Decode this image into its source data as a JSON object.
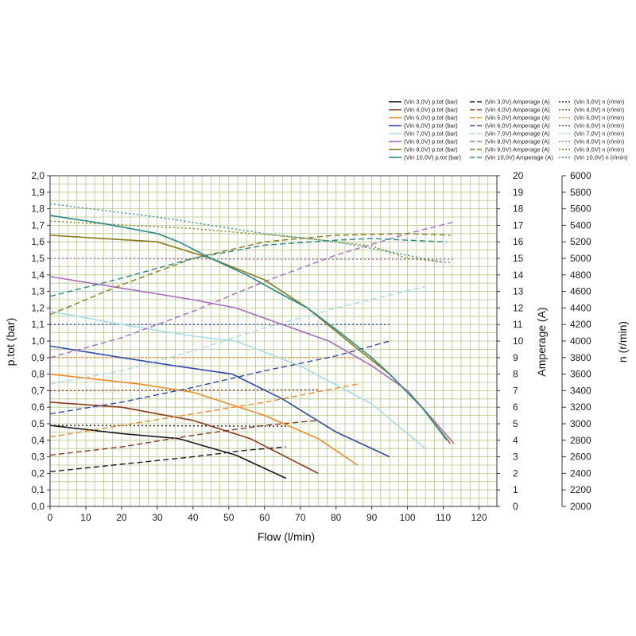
{
  "chart_data": {
    "type": "line",
    "xlabel": "Flow (l/min)",
    "ylabel_left": "p.tot (bar)",
    "ylabel_right1": "Amperage (A)",
    "ylabel_right2": "n (r/min)",
    "xlim": [
      0,
      125
    ],
    "ylim_left": [
      0,
      2.0
    ],
    "ylim_right1": [
      0,
      20
    ],
    "ylim_right2": [
      2000,
      6000
    ],
    "x_ticks": [
      "0",
      "10",
      "20",
      "30",
      "40",
      "50",
      "60",
      "70",
      "80",
      "90",
      "100",
      "110",
      "120"
    ],
    "y_left_ticks": [
      "0,0",
      "0,1",
      "0,2",
      "0,3",
      "0,4",
      "0,5",
      "0,6",
      "0,7",
      "0,8",
      "0,9",
      "1,0",
      "1,1",
      "1,2",
      "1,3",
      "1,4",
      "1,5",
      "1,6",
      "1,7",
      "1,8",
      "1,9",
      "2,0"
    ],
    "y_right1_ticks": [
      "0",
      "1",
      "2",
      "3",
      "4",
      "5",
      "6",
      "7",
      "8",
      "9",
      "10",
      "11",
      "12",
      "13",
      "14",
      "15",
      "16",
      "17",
      "18",
      "19",
      "20"
    ],
    "y_right2_ticks": [
      "2000",
      "2200",
      "2400",
      "2600",
      "2800",
      "3000",
      "3200",
      "3400",
      "3600",
      "3800",
      "4000",
      "4200",
      "4400",
      "4600",
      "4800",
      "5000",
      "5200",
      "5400",
      "5600",
      "5800",
      "6000"
    ],
    "grid": true,
    "legend_position": "top-right",
    "colors": {
      "grid": "#b5c48e",
      "vin3": "#1a1a1a",
      "vin4": "#8b3a1a",
      "vin5": "#f08a24",
      "vin6": "#2e4aa8",
      "vin7": "#a8dbe8",
      "vin8": "#a86bbd",
      "vin9": "#8a7a1a",
      "vin10": "#2a8a84"
    },
    "series": [
      {
        "key": "vin3",
        "voltage": "3,0V",
        "legend_ptot": "(Vin 3,0V) p.tot (bar)",
        "legend_amp": "(Vin 3,0V) Amperage (A)",
        "legend_n": "(Vin 3,0V) n (r/min)",
        "ptot": [
          [
            0,
            0.49
          ],
          [
            20,
            0.44
          ],
          [
            36,
            0.41
          ],
          [
            52,
            0.31
          ],
          [
            66,
            0.17
          ]
        ],
        "amp": [
          [
            0,
            2.1
          ],
          [
            20,
            2.55
          ],
          [
            40,
            3.0
          ],
          [
            55,
            3.4
          ],
          [
            66,
            3.6
          ]
        ],
        "n": [
          [
            0,
            2980
          ],
          [
            66,
            2970
          ]
        ]
      },
      {
        "key": "vin4",
        "voltage": "4,0V",
        "legend_ptot": "(Vin 4,0V) p.tot (bar)",
        "legend_amp": "(Vin 4,0V) Amperage (A)",
        "legend_n": "(Vin 4,0V) n (r/min)",
        "ptot": [
          [
            0,
            0.63
          ],
          [
            20,
            0.6
          ],
          [
            40,
            0.52
          ],
          [
            56,
            0.41
          ],
          [
            75,
            0.2
          ]
        ],
        "amp": [
          [
            0,
            3.1
          ],
          [
            20,
            3.6
          ],
          [
            40,
            4.3
          ],
          [
            60,
            4.9
          ],
          [
            75,
            5.2
          ]
        ],
        "n": [
          [
            0,
            3400
          ],
          [
            75,
            3410
          ]
        ]
      },
      {
        "key": "vin5",
        "voltage": "5,0V",
        "legend_ptot": "(Vin 5,0V) p.tot (bar)",
        "legend_amp": "(Vin 5,0V) Amperage (A)",
        "legend_n": "(Vin 5,0V) n (r/min)",
        "ptot": [
          [
            0,
            0.8
          ],
          [
            25,
            0.74
          ],
          [
            40,
            0.69
          ],
          [
            60,
            0.55
          ],
          [
            75,
            0.41
          ],
          [
            86,
            0.25
          ]
        ],
        "amp": [
          [
            0,
            4.2
          ],
          [
            20,
            4.9
          ],
          [
            40,
            5.6
          ],
          [
            60,
            6.3
          ],
          [
            86,
            7.4
          ]
        ],
        "n": [
          [
            0,
            3800
          ],
          [
            86,
            3800
          ]
        ]
      },
      {
        "key": "vin6",
        "voltage": "6,0V",
        "legend_ptot": "(Vin 6,0V) p.tot (bar)",
        "legend_amp": "(Vin 6,0V) Amperage (A)",
        "legend_n": "(Vin 6,0V) n (r/min)",
        "ptot": [
          [
            0,
            0.97
          ],
          [
            20,
            0.9
          ],
          [
            35,
            0.85
          ],
          [
            51,
            0.8
          ],
          [
            65,
            0.65
          ],
          [
            80,
            0.45
          ],
          [
            95,
            0.3
          ]
        ],
        "amp": [
          [
            0,
            5.6
          ],
          [
            20,
            6.3
          ],
          [
            40,
            7.2
          ],
          [
            60,
            8.2
          ],
          [
            80,
            9.1
          ],
          [
            95,
            10.0
          ]
        ],
        "n": [
          [
            0,
            4200
          ],
          [
            95,
            4200
          ]
        ]
      },
      {
        "key": "vin7",
        "voltage": "7,0V",
        "legend_ptot": "(Vin 7,0V) p.tot (bar)",
        "legend_amp": "(Vin 7,0V) Amperage (A)",
        "legend_n": "(Vin 7,0V) n (r/min)",
        "ptot": [
          [
            0,
            1.18
          ],
          [
            20,
            1.1
          ],
          [
            40,
            1.03
          ],
          [
            52,
            1.0
          ],
          [
            70,
            0.85
          ],
          [
            90,
            0.62
          ],
          [
            105,
            0.35
          ]
        ],
        "amp": [
          [
            0,
            7.4
          ],
          [
            20,
            8.2
          ],
          [
            40,
            9.4
          ],
          [
            60,
            10.8
          ],
          [
            80,
            12.0
          ],
          [
            105,
            13.3
          ]
        ],
        "n": [
          [
            0,
            4600
          ],
          [
            105,
            4600
          ]
        ]
      },
      {
        "key": "vin8",
        "voltage": "8,0V",
        "legend_ptot": "(Vin 8,0V) p.tot (bar)",
        "legend_amp": "(Vin 8,0V) Amperage (A)",
        "legend_n": "(Vin 8,0V) n (r/min)",
        "ptot": [
          [
            0,
            1.39
          ],
          [
            20,
            1.32
          ],
          [
            40,
            1.25
          ],
          [
            52,
            1.2
          ],
          [
            65,
            1.1
          ],
          [
            78,
            1.0
          ],
          [
            90,
            0.85
          ],
          [
            100,
            0.7
          ],
          [
            113,
            0.38
          ]
        ],
        "amp": [
          [
            0,
            9.0
          ],
          [
            20,
            10.2
          ],
          [
            40,
            11.8
          ],
          [
            60,
            13.6
          ],
          [
            80,
            15.2
          ],
          [
            100,
            16.5
          ],
          [
            113,
            17.2
          ]
        ],
        "n": [
          [
            0,
            5000
          ],
          [
            60,
            4990
          ],
          [
            113,
            4990
          ]
        ]
      },
      {
        "key": "vin9",
        "voltage": "9,0V",
        "legend_ptot": "(Vin 9,0V) p.tot (bar)",
        "legend_amp": "(Vin 9,0V) Amperage (A)",
        "legend_n": "(Vin 9,0V) n (r/min)",
        "ptot": [
          [
            0,
            1.64
          ],
          [
            15,
            1.62
          ],
          [
            30,
            1.6
          ],
          [
            45,
            1.5
          ],
          [
            60,
            1.37
          ],
          [
            72,
            1.2
          ],
          [
            85,
            0.97
          ],
          [
            95,
            0.8
          ],
          [
            104,
            0.6
          ],
          [
            112,
            0.38
          ]
        ],
        "amp": [
          [
            0,
            11.6
          ],
          [
            20,
            13.4
          ],
          [
            40,
            15.0
          ],
          [
            60,
            16.0
          ],
          [
            80,
            16.4
          ],
          [
            100,
            16.5
          ],
          [
            112,
            16.4
          ]
        ],
        "n": [
          [
            0,
            5450
          ],
          [
            40,
            5360
          ],
          [
            70,
            5250
          ],
          [
            90,
            5150
          ],
          [
            100,
            5000
          ],
          [
            112,
            4950
          ]
        ]
      },
      {
        "key": "vin10",
        "voltage": "10,0V",
        "legend_ptot": "(Vin 10,0V) p.tot (bar)",
        "legend_amp": "(Vin 10,0V) Amperage (A)",
        "legend_n": "(Vin 10,0V) n (r/min)",
        "ptot": [
          [
            0,
            1.76
          ],
          [
            15,
            1.71
          ],
          [
            30,
            1.65
          ],
          [
            36,
            1.6
          ],
          [
            45,
            1.5
          ],
          [
            55,
            1.4
          ],
          [
            65,
            1.28
          ],
          [
            72,
            1.2
          ],
          [
            80,
            1.07
          ],
          [
            90,
            0.9
          ],
          [
            95,
            0.8
          ],
          [
            104,
            0.6
          ],
          [
            111,
            0.4
          ]
        ],
        "amp": [
          [
            0,
            12.7
          ],
          [
            20,
            13.8
          ],
          [
            40,
            15.0
          ],
          [
            60,
            15.8
          ],
          [
            80,
            16.1
          ],
          [
            90,
            16.2
          ],
          [
            100,
            16.1
          ],
          [
            111,
            16.0
          ]
        ],
        "n": [
          [
            0,
            5660
          ],
          [
            30,
            5500
          ],
          [
            60,
            5300
          ],
          [
            80,
            5200
          ],
          [
            95,
            5080
          ],
          [
            110,
            4950
          ]
        ]
      }
    ]
  }
}
